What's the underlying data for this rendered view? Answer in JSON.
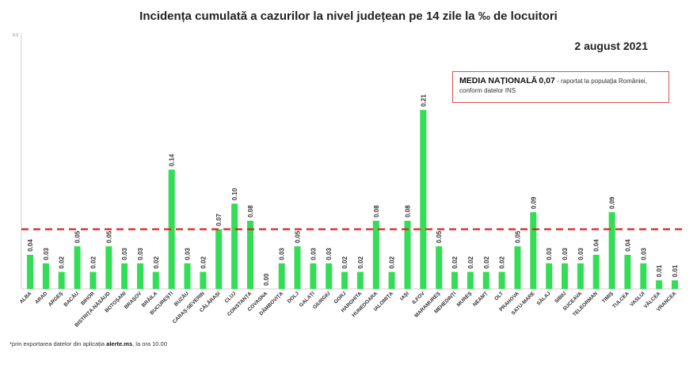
{
  "title": "Incidența cumulată a cazurilor la nivel județean pe 14 zile   la ‰ de locuitori",
  "date": "2 august 2021",
  "national": {
    "label": "MEDIA NAȚIONALĂ",
    "value": "0,07",
    "note": " - raportat la populația României, conform datelor INS"
  },
  "footnote": {
    "prefix": "*prin exportarea datelor din aplicația ",
    "app": "alerte.ms",
    "suffix": ", la ora 10.00"
  },
  "colors": {
    "bar": "#33dd55",
    "reference_line": "#e02020",
    "box_border": "#e05050"
  },
  "chart_data": {
    "type": "bar",
    "title": "Incidența cumulată a cazurilor la nivel județean pe 14 zile   la ‰ de locuitori",
    "y_top_tick": "0.3",
    "ylim": [
      0,
      0.3
    ],
    "reference_line": {
      "value": 0.07,
      "style": "dashed"
    },
    "grid": false,
    "categories": [
      "ALBA",
      "ARAD",
      "ARGEȘ",
      "BACĂU",
      "BIHOR",
      "BISTRIȚA-NĂSĂUD",
      "BOTOȘANI",
      "BRAȘOV",
      "BRĂILA",
      "BUCUREȘTI",
      "BUZĂU",
      "CARAȘ-SEVERIN",
      "CĂLĂRAȘI",
      "CLUJ",
      "CONSTANȚA",
      "COVASNA",
      "DÂMBOVIȚA",
      "DOLJ",
      "GALAȚI",
      "GIURGIU",
      "GORJ",
      "HARGHITA",
      "HUNEDOARA",
      "IALOMIȚA",
      "IAȘI",
      "ILFOV",
      "MARAMUREȘ",
      "MEHEDINȚI",
      "MUREȘ",
      "NEAMȚ",
      "OLT",
      "PRAHOVA",
      "SATU-MARE",
      "SĂLAJ",
      "SIBIU",
      "SUCEAVA",
      "TELEORMAN",
      "TIMIȘ",
      "TULCEA",
      "VASLUI",
      "VÂLCEA",
      "VRANCEA"
    ],
    "values": [
      0.04,
      0.03,
      0.02,
      0.05,
      0.02,
      0.05,
      0.03,
      0.03,
      0.02,
      0.14,
      0.03,
      0.02,
      0.07,
      0.1,
      0.08,
      0.0,
      0.03,
      0.05,
      0.03,
      0.03,
      0.02,
      0.02,
      0.08,
      0.02,
      0.08,
      0.21,
      0.05,
      0.02,
      0.02,
      0.02,
      0.02,
      0.05,
      0.09,
      0.03,
      0.03,
      0.03,
      0.04,
      0.09,
      0.04,
      0.03,
      0.01,
      0.01
    ],
    "value_labels": [
      "0.04",
      "0.03",
      "0.02",
      "0.05",
      "0.02",
      "0.05",
      "0.03",
      "0.03",
      "0.02",
      "0.14",
      "0.03",
      "0.02",
      "0.07",
      "0.10",
      "0.08",
      "0.00",
      "0.03",
      "0.05",
      "0.03",
      "0.03",
      "0.02",
      "0.02",
      "0.08",
      "0.02",
      "0.08",
      "0.21",
      "0.05",
      "0.02",
      "0.02",
      "0.02",
      "0.02",
      "0.05",
      "0.09",
      "0.03",
      "0.03",
      "0.03",
      "0.04",
      "0.09",
      "0.04",
      "0.03",
      "0.01",
      "0.01"
    ]
  }
}
